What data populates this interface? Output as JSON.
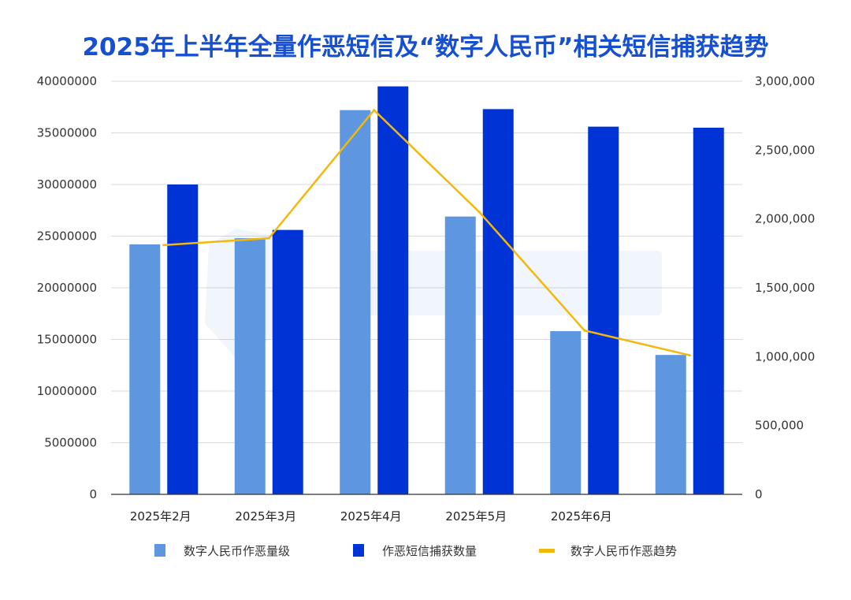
{
  "chart_data": {
    "type": "bar",
    "title": "2025年上半年全量作恶短信及“数字人民币”相关短信捕获趋势",
    "categories": [
      "2025年2月",
      "2025年3月",
      "2025年4月",
      "2025年5月",
      "2025年6月",
      ""
    ],
    "series": [
      {
        "name": "数字人民币作恶量级",
        "kind": "bar",
        "axis": "left",
        "color": "#5e96df",
        "values": [
          24200000,
          24800000,
          37200000,
          26900000,
          15800000,
          13500000
        ]
      },
      {
        "name": "作恶短信捕获数量",
        "kind": "bar",
        "axis": "left",
        "color": "#0033d6",
        "values": [
          30000000,
          25600000,
          39500000,
          37300000,
          35600000,
          35500000
        ]
      },
      {
        "name": "数字人民币作恶趋势",
        "kind": "line",
        "axis": "right",
        "color": "#f2b80c",
        "values": [
          1810000,
          1860000,
          2790000,
          2050000,
          1190000,
          1010000
        ]
      }
    ],
    "yleft": {
      "ylim": [
        0,
        40000000
      ],
      "ticks": [
        "0",
        "5000000",
        "10000000",
        "15000000",
        "20000000",
        "25000000",
        "30000000",
        "35000000",
        "40000000"
      ]
    },
    "yright": {
      "ylim": [
        0,
        3000000
      ],
      "ticks": [
        "0",
        "500,000",
        "1,000,000",
        "1,500,000",
        "2,000,000",
        "2,500,000",
        "3,000,000"
      ]
    },
    "grid": true,
    "legend_position": "bottom"
  }
}
